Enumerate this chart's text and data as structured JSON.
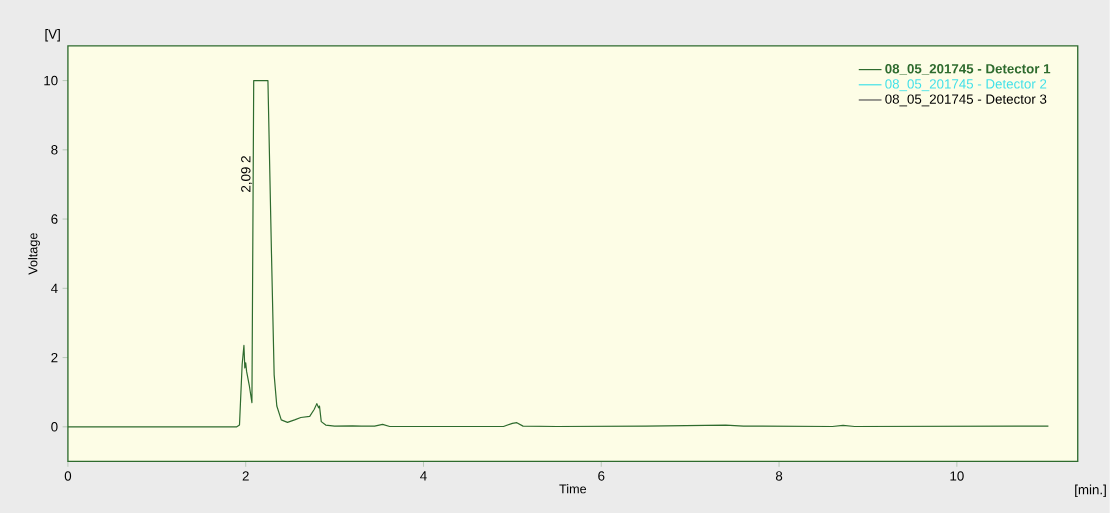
{
  "chart_data": {
    "type": "line",
    "xlabel": "Time",
    "ylabel": "Voltage",
    "xlim": [
      0,
      11.36
    ],
    "ylim": [
      -1,
      11
    ],
    "xticks": [
      0,
      2,
      4,
      6,
      8,
      10
    ],
    "yticks": [
      0,
      2,
      4,
      6,
      8,
      10
    ],
    "legend": "top right",
    "line_style": "solid",
    "annotations": [
      {
        "text": "2,09  2",
        "x": 2.09,
        "y": 7.3
      },
      "[V]",
      "[min.]"
    ],
    "series": [
      {
        "name": "08_05_201745 - Detector 1",
        "color": "#2e6b2e",
        "x": [
          0,
          1.9,
          1.93,
          1.96,
          1.98,
          1.99,
          2.0,
          2.01,
          2.04,
          2.07,
          2.09,
          2.25,
          2.29,
          2.32,
          2.35,
          2.4,
          2.47,
          2.55,
          2.62,
          2.72,
          2.77,
          2.8,
          2.82,
          2.83,
          2.85,
          2.9,
          3.0,
          3.2,
          3.3,
          3.45,
          3.54,
          3.62,
          4.0,
          4.9,
          5.0,
          5.05,
          5.12,
          5.5,
          6.5,
          7.4,
          7.6,
          8.6,
          8.72,
          8.85,
          11.03
        ],
        "values": [
          0,
          0,
          0.05,
          1.8,
          2.35,
          1.7,
          1.85,
          1.6,
          1.2,
          0.7,
          10,
          10,
          5,
          1.5,
          0.6,
          0.2,
          0.13,
          0.2,
          0.27,
          0.3,
          0.5,
          0.67,
          0.55,
          0.6,
          0.15,
          0.05,
          0.02,
          0.03,
          0.02,
          0.02,
          0.07,
          0.01,
          0.01,
          0.01,
          0.1,
          0.12,
          0.02,
          0.01,
          0.02,
          0.05,
          0.02,
          0.01,
          0.04,
          0.01,
          0.02
        ]
      },
      {
        "name": "08_05_201745 - Detector 2",
        "color": "#40e0e8"
      },
      {
        "name": "08_05_201745 - Detector 3",
        "color": "#555555"
      }
    ]
  }
}
